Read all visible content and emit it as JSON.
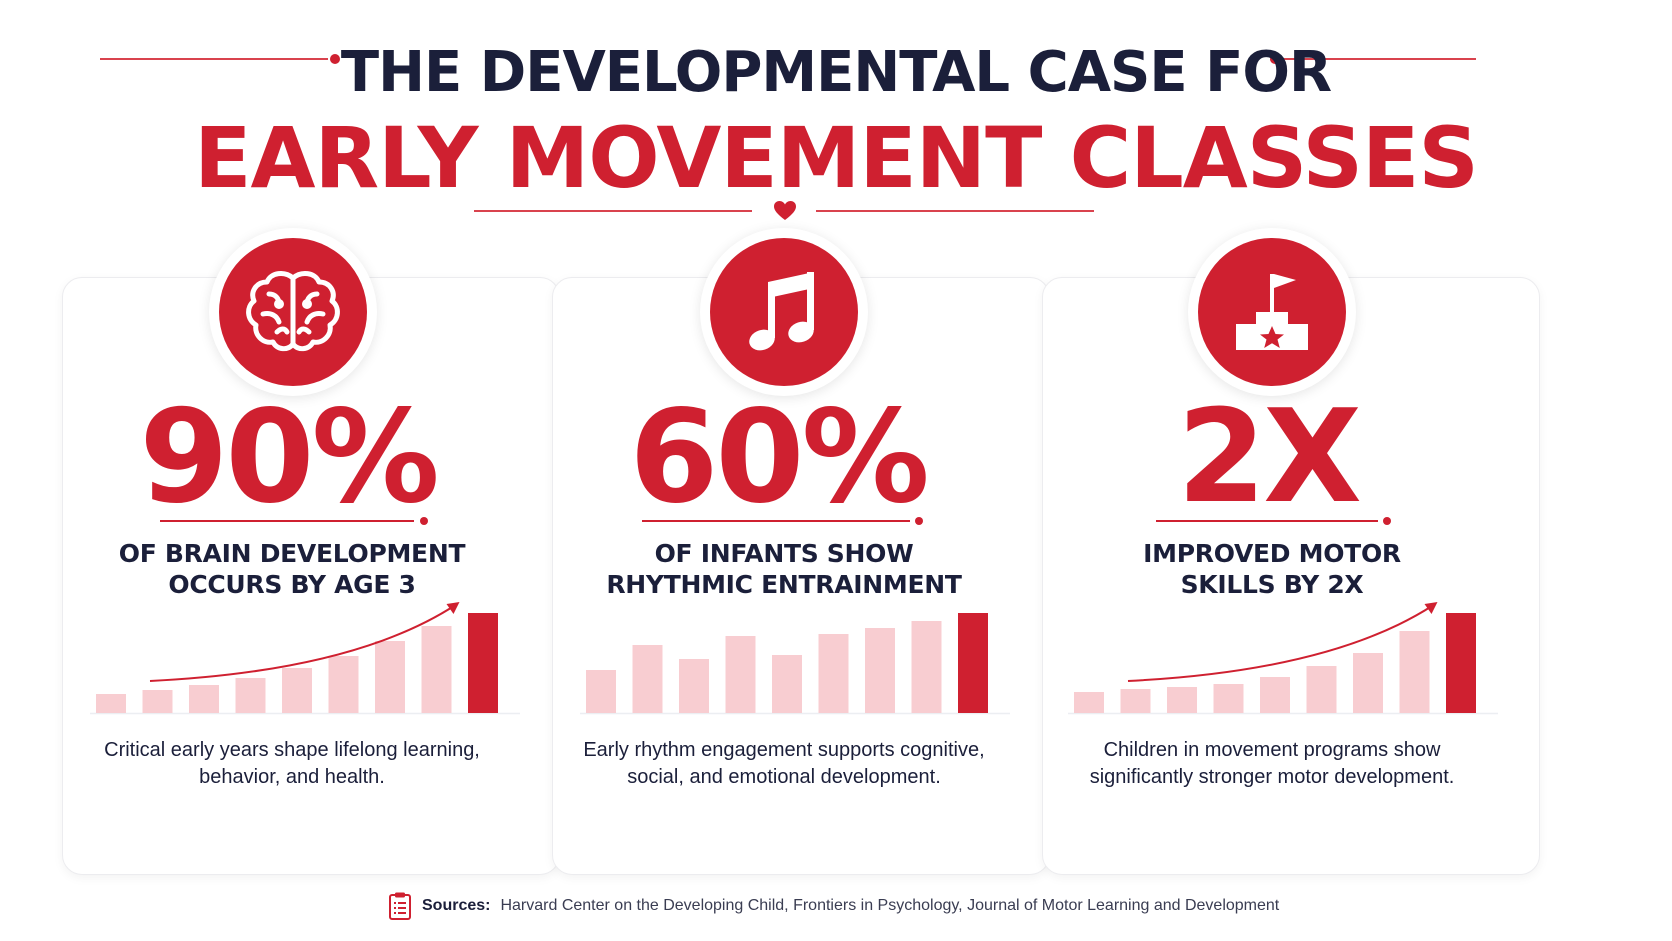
{
  "header": {
    "title_line1": "THE DEVELOPMENTAL CASE FOR",
    "title_line2": "EARLY MOVEMENT CLASSES",
    "divider_icon": "heart-icon"
  },
  "colors": {
    "accent": "#cf2030",
    "text": "#1b1f3a",
    "bar_light": "#f8cdd1"
  },
  "cards": [
    {
      "icon": "brain-icon",
      "stat": "90%",
      "label_line1": "OF BRAIN DEVELOPMENT",
      "label_line2": "OCCURS BY AGE 3",
      "desc_line1": "Critical early years shape lifelong learning,",
      "desc_line2": "behavior, and health."
    },
    {
      "icon": "music-note-icon",
      "stat": "60%",
      "label_line1": "OF INFANTS SHOW",
      "label_line2": "RHYTHMIC ENTRAINMENT",
      "desc_line1": "Early rhythm engagement supports cognitive,",
      "desc_line2": "social, and emotional development."
    },
    {
      "icon": "podium-flag-icon",
      "stat": "2X",
      "label_line1": "IMPROVED MOTOR",
      "label_line2": "SKILLS BY 2X",
      "desc_line1": "Children in movement programs show",
      "desc_line2": "significantly stronger motor development."
    }
  ],
  "chart_data": [
    {
      "type": "bar",
      "values": [
        0.19,
        0.23,
        0.28,
        0.35,
        0.45,
        0.57,
        0.72,
        0.87,
        1.0
      ],
      "highlight_last": true,
      "trend_arrow": true
    },
    {
      "type": "bar",
      "values": [
        0.43,
        0.68,
        0.54,
        0.77,
        0.58,
        0.79,
        0.85,
        0.92,
        1.0
      ],
      "highlight_last": true,
      "trend_arrow": false
    },
    {
      "type": "bar",
      "values": [
        0.21,
        0.24,
        0.26,
        0.29,
        0.36,
        0.47,
        0.6,
        0.82,
        1.0
      ],
      "highlight_last": true,
      "trend_arrow": true
    }
  ],
  "footer": {
    "icon": "clipboard-icon",
    "sources_label": "Sources:",
    "sources_text": "Harvard Center on the Developing Child, Frontiers in Psychology, Journal of Motor Learning and Development"
  }
}
